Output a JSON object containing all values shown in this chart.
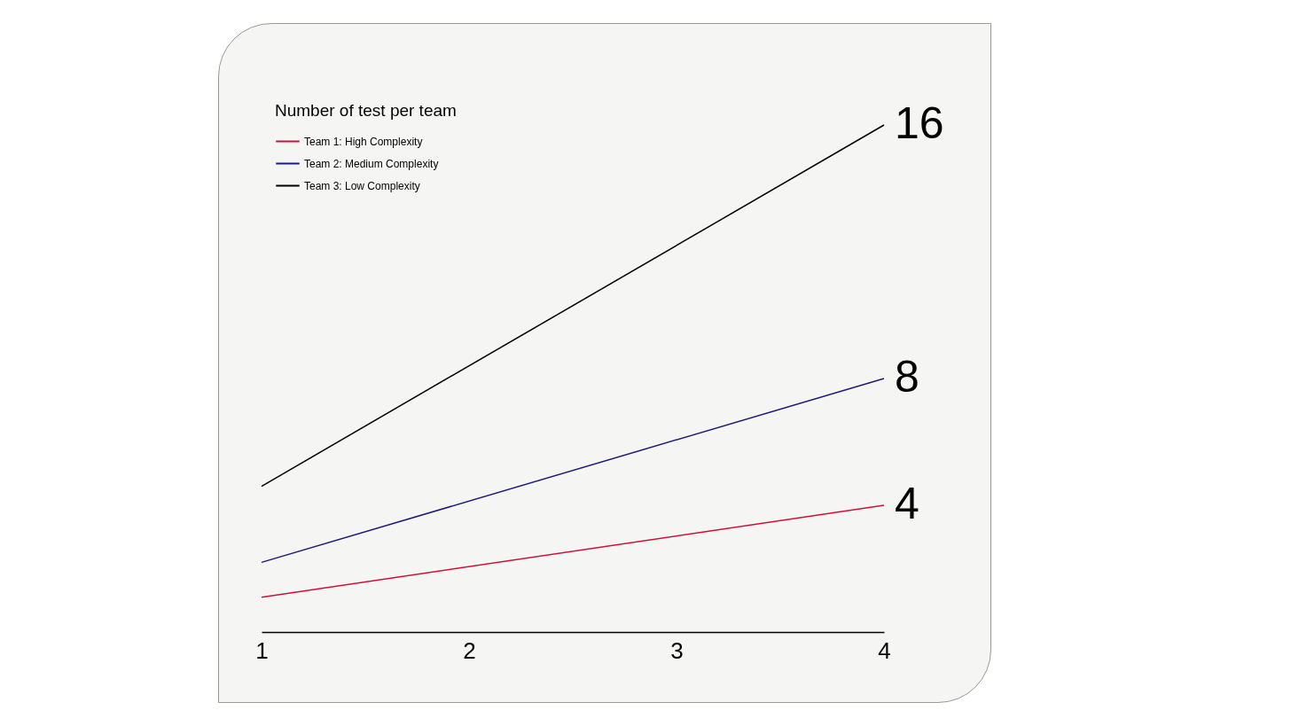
{
  "chart_data": {
    "type": "line",
    "legend_title": "Number of test per team",
    "x": [
      1,
      4
    ],
    "xlim": [
      1,
      4
    ],
    "xticks": [
      1,
      2,
      3,
      4
    ],
    "tick_labels": "x",
    "grid": false,
    "legend": "top left",
    "marker": "none",
    "line_style": "solid",
    "series": [
      {
        "name": "Team 1: High Complexity",
        "color": "#d0103a",
        "values": [
          1.1,
          4
        ],
        "value_labels": [
          null,
          "4"
        ]
      },
      {
        "name": "Team 2: Medium Complexity",
        "color": "#1e1a78",
        "values": [
          2.2,
          8
        ],
        "value_labels": [
          null,
          "8"
        ]
      },
      {
        "name": "Team 3: Low Complexity",
        "color": "#000000",
        "values": [
          4.6,
          16
        ],
        "value_labels": [
          null,
          "16"
        ]
      }
    ]
  }
}
